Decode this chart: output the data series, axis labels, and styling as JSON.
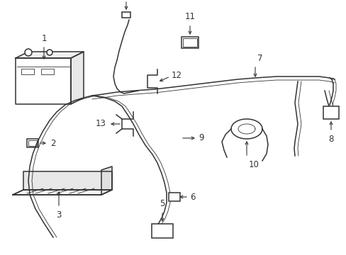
{
  "background_color": "#ffffff",
  "line_color": "#333333",
  "lw": 1.1,
  "lw_thin": 0.6,
  "fs": 8.5,
  "fig_width": 4.89,
  "fig_height": 3.6,
  "dpi": 100
}
